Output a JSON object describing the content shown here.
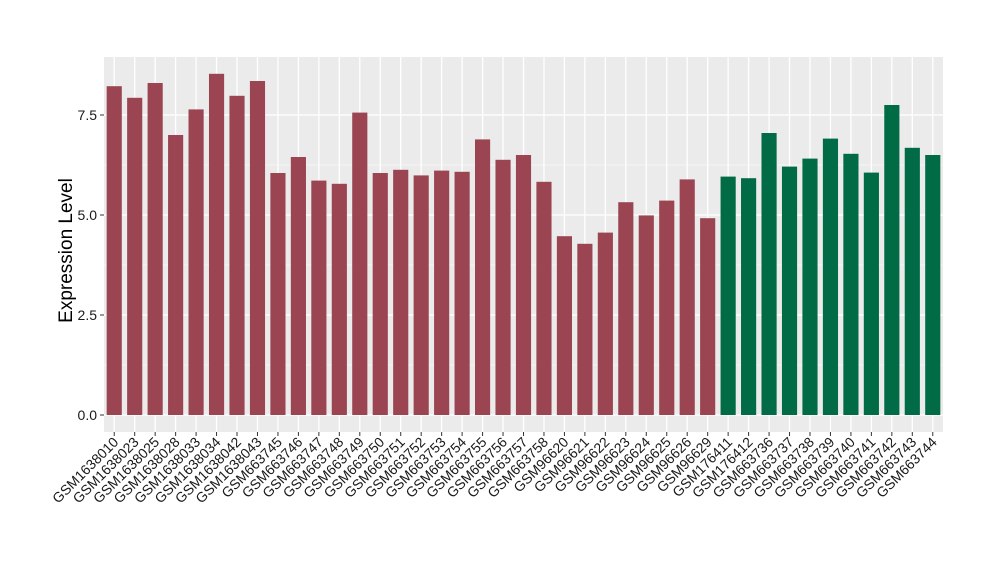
{
  "chart_data": {
    "type": "bar",
    "title": "",
    "xlabel": "",
    "ylabel": "Expression Level",
    "ylim": [
      0,
      8.8
    ],
    "yticks": [
      0.0,
      2.5,
      5.0,
      7.5
    ],
    "ytick_labels": [
      "0.0",
      "2.5",
      "5.0",
      "7.5"
    ],
    "grid": true,
    "background": "#ebebeb",
    "categories": [
      "GSM1638010",
      "GSM1638023",
      "GSM1638025",
      "GSM1638028",
      "GSM1638033",
      "GSM1638034",
      "GSM1638042",
      "GSM1638043",
      "GSM663745",
      "GSM663746",
      "GSM663747",
      "GSM663748",
      "GSM663749",
      "GSM663750",
      "GSM663751",
      "GSM663752",
      "GSM663753",
      "GSM663754",
      "GSM663755",
      "GSM663756",
      "GSM663757",
      "GSM663758",
      "GSM96620",
      "GSM96621",
      "GSM96622",
      "GSM96623",
      "GSM96624",
      "GSM96625",
      "GSM96626",
      "GSM96629",
      "GSM176411",
      "GSM176412",
      "GSM663736",
      "GSM663737",
      "GSM663738",
      "GSM663739",
      "GSM663740",
      "GSM663741",
      "GSM663742",
      "GSM663743",
      "GSM663744"
    ],
    "values": [
      8.22,
      7.93,
      8.3,
      7.0,
      7.64,
      8.53,
      7.98,
      8.35,
      6.05,
      6.45,
      5.86,
      5.78,
      7.56,
      6.05,
      6.13,
      5.99,
      6.11,
      6.08,
      6.89,
      6.38,
      6.5,
      5.83,
      4.47,
      4.28,
      4.56,
      5.32,
      4.99,
      5.36,
      5.89,
      4.92,
      5.96,
      5.92,
      7.05,
      6.21,
      6.41,
      6.91,
      6.53,
      6.06,
      7.75,
      6.68,
      6.5
    ],
    "groups": [
      "a",
      "a",
      "a",
      "a",
      "a",
      "a",
      "a",
      "a",
      "a",
      "a",
      "a",
      "a",
      "a",
      "a",
      "a",
      "a",
      "a",
      "a",
      "a",
      "a",
      "a",
      "a",
      "a",
      "a",
      "a",
      "a",
      "a",
      "a",
      "a",
      "a",
      "b",
      "b",
      "b",
      "b",
      "b",
      "b",
      "b",
      "b",
      "b",
      "b",
      "b"
    ],
    "group_colors": {
      "a": "#9b4552",
      "b": "#006b45"
    }
  }
}
